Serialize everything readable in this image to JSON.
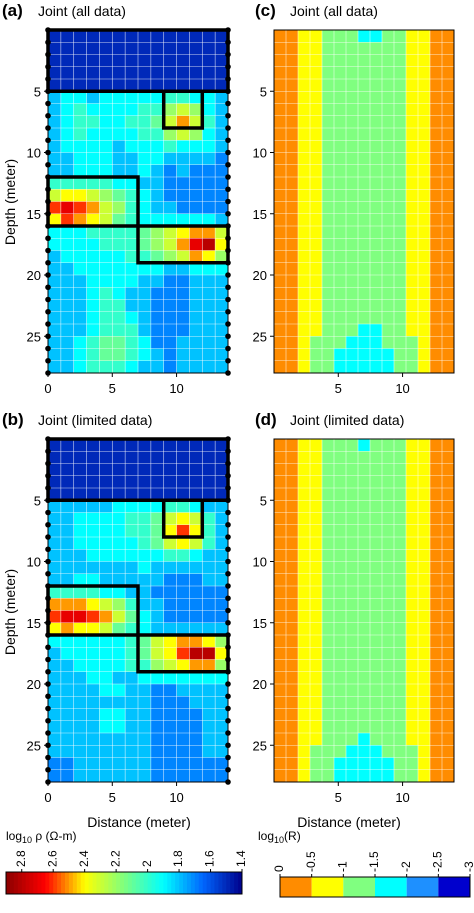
{
  "chart_data": [
    {
      "type": "heatmap",
      "panel": "(a)",
      "title": "Joint (all data)",
      "xlabel": "",
      "ylabel": "Depth (meter)",
      "x_ticks": [
        "0",
        "5",
        "10"
      ],
      "y_ticks": [
        "5",
        "10",
        "15",
        "20",
        "25"
      ],
      "xlim": [
        0,
        14
      ],
      "ylim": [
        0,
        28
      ],
      "values": [
        [
          1.5,
          1.5,
          1.5,
          1.5,
          1.5,
          1.5,
          1.5,
          1.5,
          1.5,
          1.5,
          1.5,
          1.5,
          1.5,
          1.5
        ],
        [
          1.5,
          1.5,
          1.5,
          1.5,
          1.5,
          1.5,
          1.5,
          1.5,
          1.5,
          1.5,
          1.5,
          1.5,
          1.5,
          1.5
        ],
        [
          1.5,
          1.5,
          1.5,
          1.5,
          1.5,
          1.5,
          1.5,
          1.5,
          1.5,
          1.5,
          1.5,
          1.5,
          1.5,
          1.5
        ],
        [
          1.5,
          1.5,
          1.5,
          1.5,
          1.5,
          1.5,
          1.5,
          1.5,
          1.5,
          1.5,
          1.5,
          1.5,
          1.5,
          1.5
        ],
        [
          1.5,
          1.5,
          1.5,
          1.5,
          1.5,
          1.5,
          1.5,
          1.5,
          1.5,
          1.5,
          1.5,
          1.5,
          1.5,
          1.5
        ],
        [
          1.8,
          1.9,
          1.9,
          1.8,
          1.9,
          1.9,
          1.9,
          1.9,
          1.9,
          2.0,
          2.0,
          1.9,
          1.9,
          1.8
        ],
        [
          1.8,
          1.9,
          2.0,
          1.9,
          1.9,
          1.9,
          1.9,
          2.0,
          2.0,
          2.2,
          2.3,
          2.2,
          1.9,
          1.8
        ],
        [
          1.8,
          1.9,
          2.0,
          2.0,
          1.9,
          1.9,
          2.0,
          2.0,
          2.1,
          2.3,
          2.5,
          2.3,
          2.0,
          1.8
        ],
        [
          1.8,
          1.9,
          2.0,
          1.9,
          1.9,
          1.9,
          1.9,
          2.0,
          2.0,
          2.2,
          2.3,
          2.2,
          1.9,
          1.8
        ],
        [
          1.8,
          1.9,
          1.9,
          1.9,
          1.9,
          1.8,
          1.9,
          1.9,
          1.9,
          2.0,
          1.9,
          1.9,
          1.9,
          1.8
        ],
        [
          1.8,
          1.8,
          1.9,
          1.9,
          1.9,
          1.8,
          1.8,
          1.9,
          1.9,
          1.8,
          1.8,
          1.8,
          1.8,
          1.7
        ],
        [
          1.8,
          1.8,
          1.9,
          1.9,
          1.9,
          1.8,
          1.8,
          1.9,
          1.8,
          1.7,
          1.8,
          1.7,
          1.7,
          1.7
        ],
        [
          2.0,
          2.0,
          2.0,
          2.0,
          2.0,
          1.9,
          1.9,
          1.8,
          1.8,
          1.7,
          1.7,
          1.7,
          1.7,
          1.7
        ],
        [
          2.3,
          2.4,
          2.4,
          2.3,
          2.2,
          2.1,
          2.0,
          1.9,
          1.8,
          1.7,
          1.7,
          1.7,
          1.7,
          1.7
        ],
        [
          2.6,
          2.7,
          2.6,
          2.5,
          2.3,
          2.2,
          2.0,
          1.9,
          1.8,
          1.8,
          1.7,
          1.7,
          1.7,
          1.7
        ],
        [
          2.4,
          2.6,
          2.5,
          2.4,
          2.3,
          2.1,
          2.0,
          1.9,
          1.9,
          1.9,
          1.9,
          1.9,
          1.9,
          1.8
        ],
        [
          1.9,
          1.9,
          1.9,
          2.0,
          2.0,
          2.0,
          2.0,
          2.1,
          2.2,
          2.3,
          2.4,
          2.5,
          2.5,
          2.3
        ],
        [
          1.9,
          1.9,
          1.9,
          1.9,
          2.0,
          2.0,
          2.0,
          2.1,
          2.2,
          2.3,
          2.5,
          2.7,
          2.8,
          2.4
        ],
        [
          1.8,
          1.9,
          1.9,
          1.9,
          1.9,
          1.9,
          2.0,
          2.0,
          2.1,
          2.2,
          2.3,
          2.5,
          2.4,
          2.2
        ],
        [
          1.8,
          1.8,
          1.9,
          1.9,
          1.9,
          1.9,
          1.9,
          1.9,
          1.9,
          1.8,
          1.8,
          1.9,
          1.9,
          1.9
        ],
        [
          1.8,
          1.8,
          1.8,
          1.9,
          1.9,
          1.9,
          1.9,
          1.8,
          1.8,
          1.7,
          1.7,
          1.8,
          1.8,
          1.8
        ],
        [
          1.8,
          1.8,
          1.8,
          1.9,
          2.0,
          1.9,
          1.8,
          1.8,
          1.7,
          1.7,
          1.7,
          1.8,
          1.8,
          1.8
        ],
        [
          1.8,
          1.8,
          1.8,
          1.9,
          2.0,
          2.0,
          1.8,
          1.8,
          1.7,
          1.7,
          1.7,
          1.8,
          1.8,
          1.8
        ],
        [
          1.8,
          1.8,
          1.8,
          1.9,
          2.0,
          2.0,
          1.9,
          1.8,
          1.7,
          1.7,
          1.7,
          1.8,
          1.8,
          1.8
        ],
        [
          1.8,
          1.8,
          1.8,
          1.9,
          2.0,
          2.0,
          2.0,
          1.8,
          1.7,
          1.7,
          1.7,
          1.8,
          1.8,
          1.8
        ],
        [
          1.8,
          1.8,
          1.9,
          2.0,
          2.1,
          2.1,
          2.0,
          1.9,
          1.7,
          1.7,
          1.8,
          1.8,
          1.8,
          1.8
        ],
        [
          1.8,
          1.8,
          1.9,
          2.0,
          2.1,
          2.1,
          2.0,
          1.9,
          1.8,
          1.7,
          1.8,
          1.8,
          1.8,
          1.8
        ],
        [
          1.8,
          1.8,
          1.9,
          2.0,
          2.0,
          2.0,
          1.9,
          1.8,
          1.8,
          1.7,
          1.8,
          1.8,
          1.8,
          1.8
        ]
      ]
    },
    {
      "type": "heatmap",
      "panel": "(b)",
      "title": "Joint (limited data)",
      "xlabel": "Distance (meter)",
      "ylabel": "Depth (meter)",
      "x_ticks": [
        "0",
        "5",
        "10"
      ],
      "y_ticks": [
        "5",
        "10",
        "15",
        "20",
        "25"
      ],
      "xlim": [
        0,
        14
      ],
      "ylim": [
        0,
        28
      ],
      "values": [
        [
          1.5,
          1.5,
          1.5,
          1.5,
          1.5,
          1.5,
          1.5,
          1.5,
          1.5,
          1.5,
          1.5,
          1.5,
          1.5,
          1.5
        ],
        [
          1.5,
          1.5,
          1.5,
          1.5,
          1.5,
          1.5,
          1.5,
          1.5,
          1.5,
          1.5,
          1.5,
          1.5,
          1.5,
          1.5
        ],
        [
          1.5,
          1.5,
          1.5,
          1.5,
          1.5,
          1.5,
          1.5,
          1.5,
          1.5,
          1.5,
          1.5,
          1.5,
          1.5,
          1.5
        ],
        [
          1.5,
          1.5,
          1.5,
          1.5,
          1.5,
          1.5,
          1.5,
          1.5,
          1.5,
          1.5,
          1.5,
          1.5,
          1.5,
          1.5
        ],
        [
          1.5,
          1.5,
          1.5,
          1.5,
          1.5,
          1.5,
          1.5,
          1.5,
          1.5,
          1.5,
          1.5,
          1.5,
          1.5,
          1.5
        ],
        [
          1.8,
          1.8,
          1.8,
          1.8,
          1.8,
          1.9,
          1.9,
          1.9,
          1.9,
          2.0,
          2.0,
          1.9,
          1.8,
          1.8
        ],
        [
          1.8,
          1.8,
          1.9,
          1.9,
          1.9,
          1.9,
          2.0,
          2.0,
          2.1,
          2.3,
          2.4,
          2.3,
          2.0,
          1.8
        ],
        [
          1.8,
          1.8,
          1.9,
          1.9,
          1.9,
          1.9,
          2.0,
          2.0,
          2.1,
          2.4,
          2.6,
          2.4,
          2.0,
          1.8
        ],
        [
          1.8,
          1.8,
          1.9,
          1.9,
          1.9,
          1.9,
          1.9,
          2.0,
          2.1,
          2.3,
          2.4,
          2.3,
          2.0,
          1.8
        ],
        [
          1.8,
          1.8,
          1.8,
          1.9,
          1.9,
          1.9,
          1.9,
          1.9,
          1.9,
          2.0,
          2.0,
          1.9,
          1.8,
          1.8
        ],
        [
          1.8,
          1.8,
          1.8,
          1.8,
          1.8,
          1.8,
          1.8,
          1.9,
          1.8,
          1.8,
          1.8,
          1.8,
          1.8,
          1.8
        ],
        [
          1.8,
          1.8,
          1.9,
          1.9,
          1.8,
          1.8,
          1.8,
          1.8,
          1.8,
          1.7,
          1.7,
          1.7,
          1.8,
          1.8
        ],
        [
          2.0,
          2.0,
          2.0,
          2.0,
          1.9,
          1.9,
          1.8,
          1.8,
          1.7,
          1.7,
          1.7,
          1.7,
          1.7,
          1.7
        ],
        [
          2.5,
          2.5,
          2.5,
          2.4,
          2.3,
          2.2,
          2.0,
          1.8,
          1.8,
          1.7,
          1.7,
          1.7,
          1.7,
          1.7
        ],
        [
          2.6,
          2.7,
          2.7,
          2.6,
          2.5,
          2.3,
          2.1,
          1.9,
          1.8,
          1.7,
          1.7,
          1.7,
          1.7,
          1.7
        ],
        [
          2.4,
          2.5,
          2.4,
          2.4,
          2.3,
          2.1,
          2.0,
          1.9,
          1.8,
          1.8,
          1.8,
          1.8,
          1.8,
          1.8
        ],
        [
          1.9,
          1.9,
          1.9,
          1.9,
          1.9,
          1.9,
          2.0,
          2.1,
          2.3,
          2.4,
          2.5,
          2.5,
          2.4,
          2.2
        ],
        [
          1.8,
          1.9,
          1.9,
          1.9,
          1.9,
          1.9,
          2.0,
          2.1,
          2.3,
          2.4,
          2.6,
          2.8,
          2.8,
          2.4
        ],
        [
          1.8,
          1.8,
          1.9,
          1.9,
          1.9,
          1.9,
          2.0,
          2.0,
          2.2,
          2.3,
          2.4,
          2.5,
          2.5,
          2.2
        ],
        [
          1.8,
          1.8,
          1.8,
          1.9,
          1.9,
          1.8,
          1.8,
          1.9,
          1.9,
          1.9,
          1.9,
          1.9,
          1.9,
          1.9
        ],
        [
          1.8,
          1.8,
          1.8,
          1.8,
          1.9,
          1.9,
          1.8,
          1.8,
          1.7,
          1.7,
          1.8,
          1.8,
          1.8,
          1.8
        ],
        [
          1.8,
          1.8,
          1.8,
          1.8,
          1.8,
          1.8,
          1.8,
          1.8,
          1.7,
          1.7,
          1.7,
          1.8,
          1.8,
          1.8
        ],
        [
          1.8,
          1.8,
          1.8,
          1.8,
          1.9,
          1.9,
          1.8,
          1.8,
          1.7,
          1.7,
          1.7,
          1.7,
          1.8,
          1.8
        ],
        [
          1.8,
          1.8,
          1.8,
          1.8,
          1.9,
          1.9,
          1.8,
          1.8,
          1.7,
          1.7,
          1.7,
          1.7,
          1.8,
          1.8
        ],
        [
          1.8,
          1.8,
          1.8,
          1.8,
          1.8,
          1.8,
          1.8,
          1.8,
          1.7,
          1.7,
          1.7,
          1.7,
          1.8,
          1.8
        ],
        [
          1.8,
          1.8,
          1.8,
          1.8,
          1.8,
          1.8,
          1.8,
          1.8,
          1.7,
          1.7,
          1.7,
          1.7,
          1.8,
          1.8
        ],
        [
          1.7,
          1.7,
          1.8,
          1.8,
          1.8,
          1.8,
          1.8,
          1.8,
          1.7,
          1.7,
          1.7,
          1.7,
          1.7,
          1.7
        ],
        [
          1.7,
          1.7,
          1.8,
          1.8,
          1.8,
          1.8,
          1.8,
          1.8,
          1.7,
          1.7,
          1.7,
          1.7,
          1.7,
          1.7
        ]
      ]
    },
    {
      "type": "heatmap",
      "panel": "(c)",
      "title": "Joint (all data)",
      "xlabel": "",
      "ylabel": "",
      "x_ticks": [
        "5",
        "10"
      ],
      "y_ticks": [
        "5",
        "10",
        "15",
        "20",
        "25"
      ],
      "xlim": [
        0,
        14
      ],
      "ylim": [
        0,
        28
      ],
      "column_profile": [
        -0.3,
        -0.3,
        -0.8,
        -0.8,
        -1.2,
        -1.2,
        -1.2,
        -1.2,
        -1.2,
        -1.2,
        -1.2,
        -0.8,
        -0.8,
        -0.3,
        -0.3
      ],
      "top_row_columns_cyan": [
        7,
        8
      ],
      "bottom_rows_cyan": {
        "24": [
          7,
          8
        ],
        "25": [
          6,
          7,
          8
        ],
        "26": [
          5,
          6,
          7,
          8,
          9
        ],
        "27": [
          5,
          6,
          7,
          8,
          9
        ]
      },
      "bottom_rows_green_from_yellow": {
        "24": [],
        "25": [
          3,
          11
        ],
        "26": [
          3,
          11
        ],
        "27": [
          3,
          11
        ]
      }
    },
    {
      "type": "heatmap",
      "panel": "(d)",
      "title": "Joint (limited data)",
      "xlabel": "Distance (meter)",
      "ylabel": "",
      "x_ticks": [
        "5",
        "10"
      ],
      "y_ticks": [
        "5",
        "10",
        "15",
        "20",
        "25"
      ],
      "xlim": [
        0,
        14
      ],
      "ylim": [
        0,
        28
      ],
      "column_profile": [
        -0.3,
        -0.3,
        -0.8,
        -0.8,
        -1.2,
        -1.2,
        -1.2,
        -1.2,
        -1.2,
        -1.2,
        -1.2,
        -0.8,
        -0.8,
        -0.3,
        -0.3
      ],
      "top_row_columns_cyan": [
        7
      ],
      "bottom_rows_cyan": {
        "24": [
          7
        ],
        "25": [
          6,
          7,
          8
        ],
        "26": [
          5,
          6,
          7,
          8,
          9
        ],
        "27": [
          5,
          6,
          7,
          8,
          9
        ]
      },
      "bottom_rows_green_from_yellow": {
        "24": [],
        "25": [
          3,
          11
        ],
        "26": [
          3,
          11
        ],
        "27": [
          3,
          11
        ]
      }
    }
  ],
  "panels": {
    "a": {
      "letter": "(a)",
      "title": "Joint (all data)"
    },
    "b": {
      "letter": "(b)",
      "title": "Joint (limited data)"
    },
    "c": {
      "letter": "(c)",
      "title": "Joint (all data)"
    },
    "d": {
      "letter": "(d)",
      "title": "Joint (limited data)"
    }
  },
  "axes": {
    "depth_label": "Depth (meter)",
    "distance_label": "Distance (meter)",
    "y_ticks": [
      "5",
      "10",
      "15",
      "20",
      "25"
    ],
    "x_ticks_left": [
      "0",
      "5",
      "10"
    ],
    "x_ticks_right": [
      "5",
      "10"
    ]
  },
  "colorbars": {
    "resistivity": {
      "label_prefix": "log",
      "label_sub": "10",
      "label_suffix": " ρ (Ω-m)",
      "tick_labels": [
        "2.8",
        "2.6",
        "2.4",
        "2.2",
        "2",
        "1.8",
        "1.6",
        "1.4"
      ],
      "range": [
        2.9,
        1.4
      ],
      "colors": [
        "#8b0000",
        "#ff0000",
        "#ffff00",
        "#7fff7f",
        "#00ffff",
        "#0066ff",
        "#00008b"
      ]
    },
    "ratio": {
      "label_prefix": "log",
      "label_sub": "10",
      "label_suffix": "(R)",
      "tick_labels": [
        "0",
        "-0.5",
        "-1",
        "-1.5",
        "-2",
        "-2.5",
        "-3"
      ],
      "range": [
        0,
        -3
      ],
      "classes": [
        {
          "from": 0,
          "to": -0.5,
          "color": "#ff8c00"
        },
        {
          "from": -0.5,
          "to": -1,
          "color": "#ffff00"
        },
        {
          "from": -1,
          "to": -1.5,
          "color": "#80ff80"
        },
        {
          "from": -1.5,
          "to": -2,
          "color": "#00ffff"
        },
        {
          "from": -2,
          "to": -2.5,
          "color": "#1e90ff"
        },
        {
          "from": -2.5,
          "to": -3,
          "color": "#0000cd"
        }
      ]
    }
  },
  "annotations": {
    "black_boxes_color": "#000000"
  }
}
